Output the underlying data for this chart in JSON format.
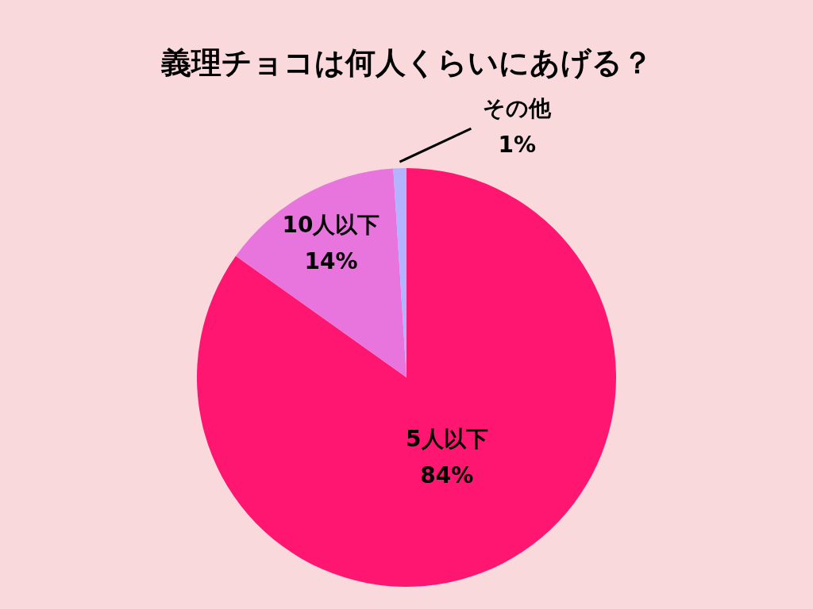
{
  "chart_data": {
    "type": "pie",
    "title": "義理チョコは何人くらいにあげる？",
    "categories": [
      "5人以下",
      "10人以下",
      "その他"
    ],
    "values": [
      84,
      14,
      1
    ],
    "value_labels": [
      "84%",
      "14%",
      "1%"
    ],
    "colors": [
      "#ff1670",
      "#e874de",
      "#b3b3ff"
    ]
  }
}
